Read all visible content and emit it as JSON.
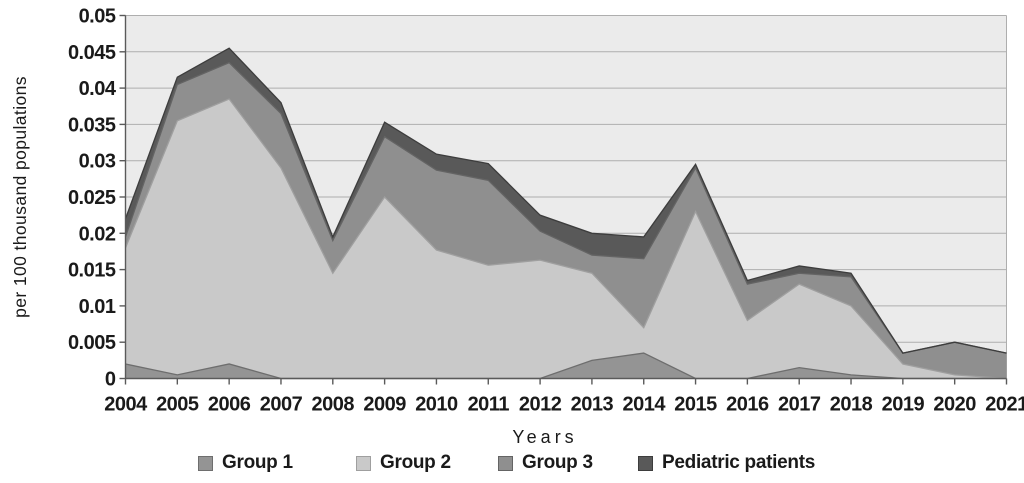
{
  "chart_data": {
    "type": "area",
    "stacked": true,
    "title": "",
    "xlabel": "Years",
    "ylabel": "per 100 thousand populations",
    "ylim": [
      0,
      0.05
    ],
    "y_tick_step": 0.005,
    "y_tick_labels": [
      "0",
      "0.005",
      "0.01",
      "0.015",
      "0.02",
      "0.025",
      "0.03",
      "0.035",
      "0.04",
      "0.045",
      "0.05"
    ],
    "grid": true,
    "legend_position": "bottom",
    "categories": [
      "2004",
      "2005",
      "2006",
      "2007",
      "2008",
      "2009",
      "2010",
      "2011",
      "2012",
      "2013",
      "2014",
      "2015",
      "2016",
      "2017",
      "2018",
      "2019",
      "2020",
      "2021"
    ],
    "series": [
      {
        "name": "Group 1",
        "color": "#949494",
        "border": "#6e6e6e",
        "values": [
          0.002,
          0.0005,
          0.002,
          0,
          0,
          0,
          0,
          0,
          0,
          0.0025,
          0.0035,
          0,
          0,
          0.0015,
          0.0005,
          0,
          0,
          0
        ]
      },
      {
        "name": "Group 2",
        "color": "#c9c9c9",
        "border": "#9f9f9f",
        "values": [
          0.016,
          0.035,
          0.0365,
          0.029,
          0.0145,
          0.025,
          0.0177,
          0.0156,
          0.0163,
          0.012,
          0.0035,
          0.023,
          0.008,
          0.0115,
          0.0095,
          0.002,
          0.0005,
          0
        ]
      },
      {
        "name": "Group 3",
        "color": "#8f8f8f",
        "border": "#646464",
        "values": [
          0.0015,
          0.005,
          0.005,
          0.0075,
          0.0045,
          0.0083,
          0.011,
          0.0117,
          0.004,
          0.0025,
          0.0095,
          0.006,
          0.005,
          0.0015,
          0.004,
          0.0015,
          0.0045,
          0.0035
        ]
      },
      {
        "name": "Pediatric patients",
        "color": "#595959",
        "border": "#3d3d3d",
        "values": [
          0.0025,
          0.001,
          0.002,
          0.0015,
          0.0005,
          0.002,
          0.0022,
          0.0023,
          0.0022,
          0.003,
          0.003,
          0.0005,
          0.0005,
          0.001,
          0.0005,
          0,
          0,
          0
        ]
      }
    ],
    "colors": {
      "page_bg": "#ffffff",
      "plot_bg": "#ebebeb",
      "grid": "#aeaeae",
      "axis": "#5a5a5a",
      "text": "#1a1a1a"
    }
  }
}
